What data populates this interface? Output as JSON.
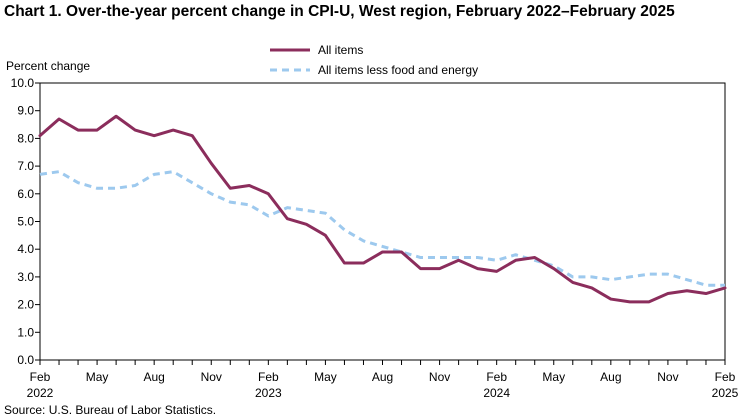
{
  "title": "Chart 1. Over-the-year percent change in CPI-U, West region, February 2022–February 2025",
  "source": "Source: U.S. Bureau of Labor Statistics.",
  "colors": {
    "all_items": "#8B2D5C",
    "core": "#9DC9EE",
    "axis": "#000000"
  },
  "chart_data": {
    "type": "line",
    "title": "Chart 1. Over-the-year percent change in CPI-U, West region, February 2022–February 2025",
    "ylabel": "Percent change",
    "xlabel": "",
    "ylim": [
      0,
      10
    ],
    "grid": false,
    "legend_position": "top-center",
    "y_ticks": [
      "0.0",
      "1.0",
      "2.0",
      "3.0",
      "4.0",
      "5.0",
      "6.0",
      "7.0",
      "8.0",
      "9.0",
      "10.0"
    ],
    "x": [
      "Feb 2022",
      "Mar 2022",
      "Apr 2022",
      "May 2022",
      "Jun 2022",
      "Jul 2022",
      "Aug 2022",
      "Sep 2022",
      "Oct 2022",
      "Nov 2022",
      "Dec 2022",
      "Jan 2023",
      "Feb 2023",
      "Mar 2023",
      "Apr 2023",
      "May 2023",
      "Jun 2023",
      "Jul 2023",
      "Aug 2023",
      "Sep 2023",
      "Oct 2023",
      "Nov 2023",
      "Dec 2023",
      "Jan 2024",
      "Feb 2024",
      "Mar 2024",
      "Apr 2024",
      "May 2024",
      "Jun 2024",
      "Jul 2024",
      "Aug 2024",
      "Sep 2024",
      "Oct 2024",
      "Nov 2024",
      "Dec 2024",
      "Jan 2025",
      "Feb 2025"
    ],
    "x_tick_labels": [
      {
        "index": 0,
        "month": "Feb",
        "year": "2022"
      },
      {
        "index": 3,
        "month": "May",
        "year": ""
      },
      {
        "index": 6,
        "month": "Aug",
        "year": ""
      },
      {
        "index": 9,
        "month": "Nov",
        "year": ""
      },
      {
        "index": 12,
        "month": "Feb",
        "year": "2023"
      },
      {
        "index": 15,
        "month": "May",
        "year": ""
      },
      {
        "index": 18,
        "month": "Aug",
        "year": ""
      },
      {
        "index": 21,
        "month": "Nov",
        "year": ""
      },
      {
        "index": 24,
        "month": "Feb",
        "year": "2024"
      },
      {
        "index": 27,
        "month": "May",
        "year": ""
      },
      {
        "index": 30,
        "month": "Aug",
        "year": ""
      },
      {
        "index": 33,
        "month": "Nov",
        "year": ""
      },
      {
        "index": 36,
        "month": "Feb",
        "year": "2025"
      }
    ],
    "series": [
      {
        "name": "All items",
        "style": "solid",
        "values": [
          8.1,
          8.7,
          8.3,
          8.3,
          8.8,
          8.3,
          8.1,
          8.3,
          8.1,
          7.1,
          6.2,
          6.3,
          6.0,
          5.1,
          4.9,
          4.5,
          3.5,
          3.5,
          3.9,
          3.9,
          3.3,
          3.3,
          3.6,
          3.3,
          3.2,
          3.6,
          3.7,
          3.3,
          2.8,
          2.6,
          2.2,
          2.1,
          2.1,
          2.4,
          2.5,
          2.4,
          2.6
        ]
      },
      {
        "name": "All items less food and energy",
        "style": "dashed",
        "values": [
          6.7,
          6.8,
          6.4,
          6.2,
          6.2,
          6.3,
          6.7,
          6.8,
          6.4,
          6.0,
          5.7,
          5.6,
          5.2,
          5.5,
          5.4,
          5.3,
          4.7,
          4.3,
          4.1,
          3.9,
          3.7,
          3.7,
          3.7,
          3.7,
          3.6,
          3.8,
          3.6,
          3.4,
          3.0,
          3.0,
          2.9,
          3.0,
          3.1,
          3.1,
          2.9,
          2.7,
          2.7
        ]
      }
    ]
  }
}
